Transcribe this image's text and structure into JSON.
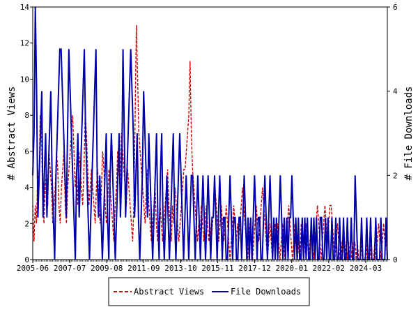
{
  "chart_data": {
    "type": "line",
    "x_tick_labels": [
      "2005-06",
      "2007-07",
      "2009-08",
      "2011-09",
      "2013-10",
      "2015-11",
      "2017-12",
      "2020-01",
      "2022-02",
      "2024-03"
    ],
    "ylabel_left": "# Abstract Views",
    "ylabel_right": "# File Downloads",
    "ylim_left": [
      0,
      14
    ],
    "ylim_right": [
      0,
      6
    ],
    "yticks_left": [
      0,
      2,
      4,
      6,
      8,
      10,
      12,
      14
    ],
    "yticks_right": [
      0,
      2,
      4,
      6
    ],
    "legend_position": "bottom-center",
    "series": [
      {
        "name": "Abstract Views",
        "axis": "left",
        "color": "#cc0000",
        "dash": "dashed",
        "values": [
          3,
          1,
          3,
          2,
          5,
          4,
          8,
          7,
          3,
          2,
          4,
          5,
          3,
          6,
          5,
          4,
          2,
          3,
          4,
          6,
          5,
          3,
          2,
          4,
          5,
          6,
          3,
          2,
          4,
          5,
          6,
          7,
          8,
          6,
          4,
          5,
          3,
          6,
          5,
          4,
          3,
          5,
          8,
          7,
          5,
          3,
          4,
          5,
          4,
          3,
          2,
          4,
          5,
          3,
          2,
          4,
          6,
          5,
          3,
          2,
          3,
          5,
          4,
          3,
          2,
          1,
          3,
          4,
          6,
          5,
          4,
          7,
          6,
          5,
          4,
          3,
          5,
          4,
          3,
          2,
          1,
          3,
          8,
          13,
          10,
          7,
          6,
          5,
          4,
          3,
          2,
          4,
          5,
          3,
          2,
          1,
          2,
          3,
          4,
          2,
          1,
          2,
          3,
          2,
          1,
          2,
          3,
          4,
          5,
          3,
          2,
          1,
          3,
          2,
          4,
          3,
          2,
          1,
          2,
          3,
          4,
          5,
          5,
          6,
          7,
          8,
          11,
          7,
          5,
          4,
          3,
          2,
          1,
          2,
          1,
          3,
          2,
          1,
          2,
          3,
          2,
          1,
          2,
          1,
          2,
          3,
          4,
          3,
          2,
          1,
          2,
          3,
          2,
          1,
          2,
          3,
          2,
          1,
          0,
          1,
          2,
          3,
          2,
          1,
          2,
          1,
          2,
          3,
          4,
          3,
          2,
          1,
          0,
          1,
          2,
          1,
          0,
          1,
          2,
          3,
          2,
          1,
          2,
          3,
          4,
          3,
          2,
          1,
          0,
          1,
          2,
          1,
          0,
          1,
          2,
          1,
          2,
          1,
          0,
          1,
          2,
          1,
          0,
          1,
          2,
          3,
          2,
          1,
          0,
          1,
          2,
          1,
          0,
          1,
          0,
          2,
          1,
          0,
          1,
          2,
          1,
          0,
          1,
          2,
          1,
          0,
          1,
          2,
          3,
          2,
          1,
          0,
          1,
          2,
          3,
          2,
          1,
          2,
          3,
          3,
          2,
          1,
          0,
          1,
          2,
          1,
          0,
          1,
          0,
          1,
          0,
          1,
          0,
          1,
          0,
          0,
          1,
          0,
          1,
          0,
          1,
          0,
          0,
          1,
          0,
          0,
          0,
          1,
          0,
          0,
          1,
          0,
          0,
          0,
          1,
          0,
          1,
          2,
          1,
          0,
          1,
          2,
          1,
          1,
          0
        ]
      },
      {
        "name": "File Downloads",
        "axis": "right",
        "color": "#0000aa",
        "dash": "solid",
        "values": [
          2,
          3,
          6,
          4,
          1,
          2,
          3,
          4,
          1,
          2,
          3,
          1,
          2,
          3,
          4,
          2,
          1,
          0,
          2,
          3,
          4,
          5,
          5,
          4,
          3,
          2,
          1,
          3,
          5,
          4,
          3,
          2,
          1,
          0,
          2,
          3,
          1,
          2,
          3,
          4,
          5,
          3,
          2,
          1,
          0,
          1,
          2,
          3,
          4,
          5,
          2,
          1,
          2,
          1,
          0,
          1,
          2,
          3,
          1,
          0,
          2,
          3,
          2,
          1,
          0,
          1,
          2,
          3,
          1,
          2,
          5,
          3,
          1,
          2,
          3,
          4,
          5,
          4,
          3,
          1,
          2,
          3,
          1,
          0,
          1,
          2,
          4,
          3,
          2,
          1,
          3,
          2,
          1,
          0,
          1,
          2,
          3,
          1,
          0,
          2,
          3,
          1,
          0,
          1,
          2,
          1,
          0,
          1,
          2,
          3,
          1,
          0,
          1,
          2,
          3,
          2,
          1,
          0,
          1,
          2,
          1,
          0,
          1,
          2,
          2,
          1,
          0,
          1,
          2,
          1,
          0,
          1,
          2,
          1,
          0,
          1,
          2,
          1,
          0,
          1,
          1,
          2,
          1,
          0,
          1,
          2,
          1,
          0,
          1,
          1,
          0,
          0,
          1,
          2,
          1,
          0,
          1,
          1,
          0,
          0,
          1,
          1,
          0,
          1,
          2,
          1,
          0,
          1,
          0,
          1,
          0,
          1,
          2,
          1,
          0,
          1,
          1,
          0,
          0,
          1,
          2,
          1,
          0,
          1,
          2,
          1,
          0,
          1,
          0,
          1,
          0,
          1,
          2,
          1,
          0,
          1,
          0,
          1,
          0,
          1,
          1,
          2,
          1,
          0,
          1,
          0,
          1,
          0,
          0,
          1,
          0,
          1,
          0,
          1,
          0,
          0,
          1,
          0,
          1,
          0,
          1,
          0,
          0,
          1,
          1,
          0,
          0,
          1,
          0,
          1,
          0,
          0,
          1,
          0,
          0,
          1,
          0,
          0,
          1,
          0,
          0,
          1,
          0,
          0,
          1,
          0,
          0,
          1,
          0,
          0,
          2,
          1,
          0,
          0,
          0,
          1,
          0,
          0,
          0,
          1,
          0,
          0,
          1,
          0,
          0,
          0,
          1,
          0,
          0,
          0,
          1,
          0,
          0,
          0,
          1,
          0
        ]
      }
    ]
  }
}
